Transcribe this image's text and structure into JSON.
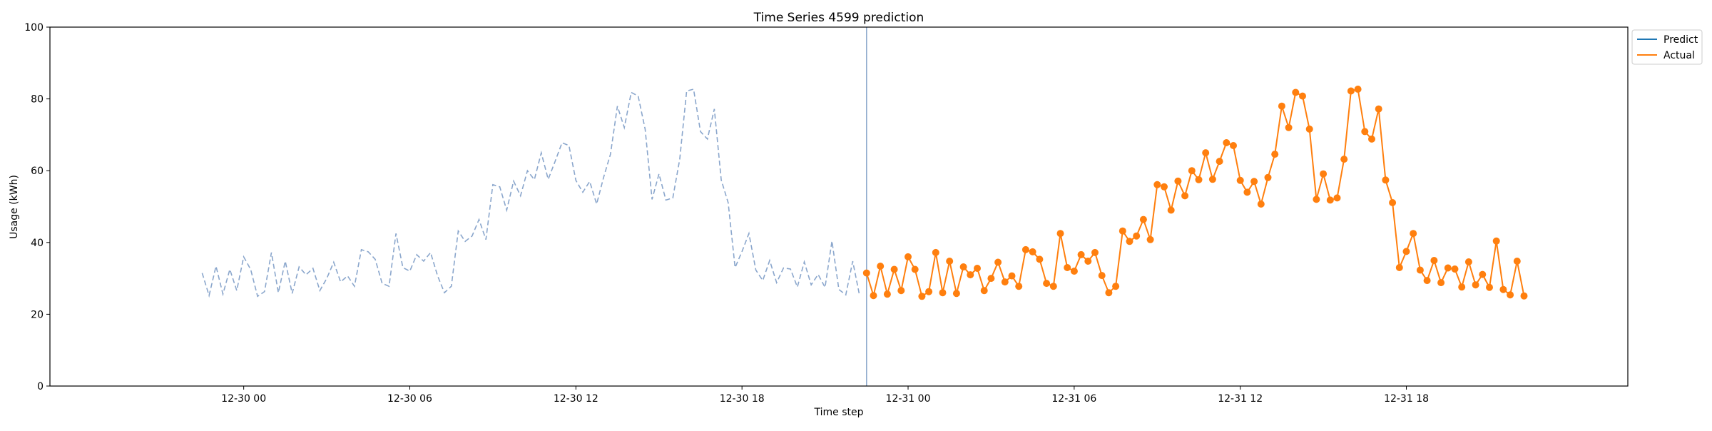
{
  "chart_data": {
    "type": "line",
    "title": "Time Series 4599 prediction",
    "xlabel": "Time step",
    "ylabel": "Usage (kWh)",
    "ylim": [
      0,
      100
    ],
    "yticks": [
      0,
      20,
      40,
      60,
      80,
      100
    ],
    "xlim": [
      "2012-12-29 17:00",
      "2013-01-01 02:00"
    ],
    "xticks": [
      {
        "t": "2012-12-30 00:00",
        "label": "12-30 00"
      },
      {
        "t": "2012-12-30 06:00",
        "label": "12-30 06"
      },
      {
        "t": "2012-12-30 12:00",
        "label": "12-30 12"
      },
      {
        "t": "2012-12-30 18:00",
        "label": "12-30 18"
      },
      {
        "t": "2012-12-31 00:00",
        "label": "12-31 00"
      },
      {
        "t": "2012-12-31 06:00",
        "label": "12-31 06"
      },
      {
        "t": "2012-12-31 12:00",
        "label": "12-31 12"
      },
      {
        "t": "2012-12-31 18:00",
        "label": "12-31 18"
      }
    ],
    "start": "2012-12-29 22:30",
    "step_minutes": 15,
    "history": [
      31.5,
      25.2,
      33.4,
      25.6,
      32.5,
      26.6,
      36.0,
      32.5,
      25.0,
      26.3,
      37.2,
      26.0,
      34.8,
      25.8,
      33.2,
      31.0,
      32.8,
      26.6,
      30.0,
      34.5,
      29.0,
      30.7,
      27.8,
      38.0,
      37.4,
      35.3,
      28.6,
      27.8,
      42.5,
      33.0,
      32.0,
      36.6,
      34.8,
      37.2,
      30.8,
      26.0,
      27.8,
      43.2,
      40.3,
      41.8,
      46.4,
      40.8,
      56.1,
      55.5,
      49.0,
      57.1,
      53.0,
      60.0,
      57.5,
      65.0,
      57.6,
      62.6,
      67.8,
      67.0,
      57.3,
      54.0,
      57.0,
      50.7,
      58.1,
      64.6,
      78.0,
      72.0,
      81.8,
      80.8,
      71.6,
      52.0,
      59.1,
      51.8,
      52.4,
      63.2,
      82.2,
      82.7,
      70.9,
      68.8,
      77.2,
      57.4,
      51.1,
      33.0,
      37.5,
      42.5,
      32.3,
      29.4,
      35.0,
      28.8,
      32.9,
      32.6,
      27.6,
      34.6,
      28.2,
      31.1,
      27.5,
      40.4,
      26.9,
      25.4,
      34.8,
      25.1
    ],
    "vline": "2012-12-30 22:30",
    "series": [
      {
        "name": "Predict",
        "color": "#1f77b4",
        "values": []
      },
      {
        "name": "Actual",
        "color": "#ff7f0e",
        "start": "2012-12-30 22:30",
        "step_minutes": 15,
        "values": [
          31.5,
          25.2,
          33.4,
          25.6,
          32.5,
          26.6,
          36.0,
          32.5,
          25.0,
          26.3,
          37.2,
          26.0,
          34.8,
          25.8,
          33.2,
          31.0,
          32.8,
          26.6,
          30.0,
          34.5,
          29.0,
          30.7,
          27.8,
          38.0,
          37.4,
          35.3,
          28.6,
          27.8,
          42.5,
          33.0,
          32.0,
          36.6,
          34.8,
          37.2,
          30.8,
          26.0,
          27.8,
          43.2,
          40.3,
          41.8,
          46.4,
          40.8,
          56.1,
          55.5,
          49.0,
          57.1,
          53.0,
          60.0,
          57.5,
          65.0,
          57.6,
          62.6,
          67.8,
          67.0,
          57.3,
          54.0,
          57.0,
          50.7,
          58.1,
          64.6,
          78.0,
          72.0,
          81.8,
          80.8,
          71.6,
          52.0,
          59.1,
          51.8,
          52.4,
          63.2,
          82.2,
          82.7,
          70.9,
          68.8,
          77.2,
          57.4,
          51.1,
          33.0,
          37.5,
          42.5,
          32.3,
          29.4,
          35.0,
          28.8,
          32.9,
          32.6,
          27.6,
          34.6,
          28.2,
          31.1,
          27.5,
          40.4,
          26.9,
          25.4,
          34.8,
          25.1
        ]
      }
    ],
    "history_color": "#8aa6cc",
    "vline_color": "#8aa6cc",
    "legend": "top-right, outside",
    "grid": false
  }
}
